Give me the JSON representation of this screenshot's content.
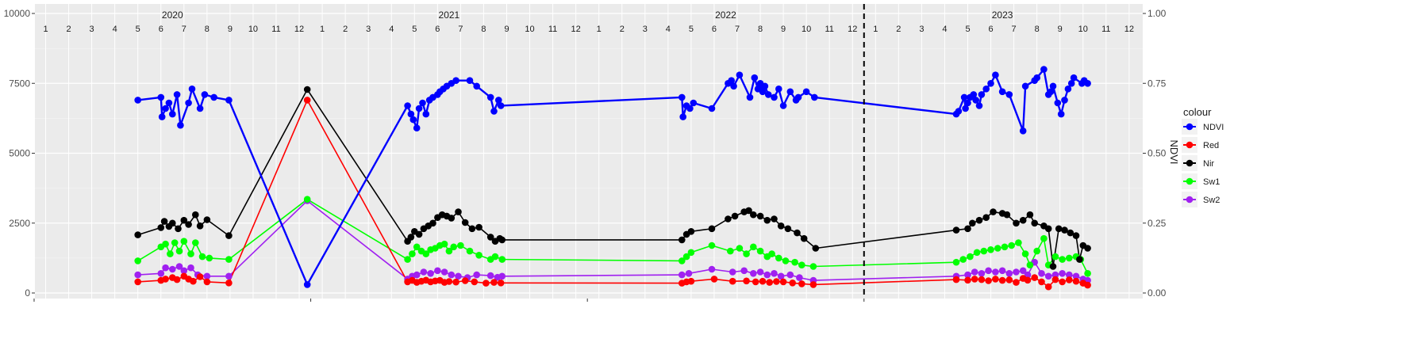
{
  "chart_data": {
    "type": "line",
    "ylim": [
      0,
      10000
    ],
    "y2lim": [
      0,
      1
    ],
    "y_ticks": [
      0,
      2500,
      5000,
      7500,
      10000
    ],
    "y_tick_labels": [
      "0",
      "2500",
      "5000",
      "7500",
      "10000"
    ],
    "y2_ticks": [
      0,
      0.25,
      0.5,
      0.75,
      1
    ],
    "y2_tick_labels": [
      "0.00",
      "0.25",
      "0.50",
      "0.75",
      "1.00"
    ],
    "y2label": "NDVI",
    "legend_title": "colour",
    "legend_position": "right",
    "grid": true,
    "years": [
      {
        "label": "2020",
        "month": 6.5
      },
      {
        "label": "2021",
        "month": 18.5
      },
      {
        "label": "2022",
        "month": 30.5
      },
      {
        "label": "2023",
        "month": 42.5
      }
    ],
    "month_labels": [
      "1",
      "2",
      "3",
      "4",
      "5",
      "6",
      "7",
      "8",
      "9",
      "10",
      "11",
      "12",
      "1",
      "2",
      "3",
      "4",
      "5",
      "6",
      "7",
      "8",
      "9",
      "10",
      "11",
      "12",
      "1",
      "2",
      "3",
      "4",
      "5",
      "6",
      "7",
      "8",
      "9",
      "10",
      "11",
      "12",
      "1",
      "2",
      "3",
      "4",
      "5",
      "6",
      "7",
      "8",
      "9",
      "10",
      "11",
      "12"
    ],
    "dashed_vline_month": 37,
    "series": [
      {
        "name": "NDVI",
        "color": "#0000ff",
        "axis": "right",
        "x": [
          5.0,
          6.0,
          6.05,
          6.2,
          6.35,
          6.5,
          6.7,
          6.85,
          7.2,
          7.35,
          7.7,
          7.9,
          8.3,
          8.95,
          12.35,
          16.7,
          16.85,
          16.95,
          17.1,
          17.2,
          17.35,
          17.5,
          17.65,
          17.8,
          18.0,
          18.1,
          18.25,
          18.4,
          18.6,
          18.8,
          19.4,
          19.7,
          20.3,
          20.45,
          20.65,
          20.75,
          28.6,
          28.65,
          28.8,
          28.95,
          29.1,
          29.9,
          30.6,
          30.75,
          30.85,
          31.1,
          31.55,
          31.75,
          31.9,
          32.0,
          32.1,
          32.2,
          32.35,
          32.6,
          32.8,
          33.0,
          33.3,
          33.55,
          33.65,
          34.0,
          34.35,
          40.5,
          40.6,
          40.85,
          40.9,
          41.0,
          41.1,
          41.25,
          41.35,
          41.5,
          41.6,
          41.8,
          42.0,
          42.2,
          42.5,
          42.8,
          43.4,
          43.5,
          43.9,
          44.0,
          44.3,
          44.5,
          44.6,
          44.7,
          44.9,
          45.05,
          45.2,
          45.35,
          45.5,
          45.6,
          45.95,
          46.05,
          46.2
        ],
        "y": [
          0.69,
          0.7,
          0.63,
          0.66,
          0.68,
          0.64,
          0.71,
          0.6,
          0.68,
          0.73,
          0.66,
          0.71,
          0.7,
          0.69,
          0.03,
          0.67,
          0.64,
          0.62,
          0.59,
          0.66,
          0.68,
          0.64,
          0.69,
          0.7,
          0.71,
          0.72,
          0.73,
          0.74,
          0.75,
          0.76,
          0.76,
          0.74,
          0.7,
          0.65,
          0.69,
          0.67,
          0.7,
          0.63,
          0.67,
          0.66,
          0.68,
          0.66,
          0.75,
          0.76,
          0.74,
          0.78,
          0.7,
          0.77,
          0.73,
          0.75,
          0.72,
          0.74,
          0.71,
          0.7,
          0.73,
          0.67,
          0.72,
          0.69,
          0.7,
          0.72,
          0.7,
          0.64,
          0.65,
          0.7,
          0.66,
          0.68,
          0.7,
          0.71,
          0.69,
          0.67,
          0.71,
          0.73,
          0.75,
          0.78,
          0.72,
          0.71,
          0.58,
          0.74,
          0.76,
          0.77,
          0.8,
          0.71,
          0.72,
          0.74,
          0.68,
          0.64,
          0.69,
          0.73,
          0.75,
          0.77,
          0.75,
          0.76,
          0.75
        ]
      },
      {
        "name": "Red",
        "color": "#ff0000",
        "axis": "left",
        "x": [
          5.0,
          6.0,
          6.2,
          6.5,
          6.7,
          7.0,
          7.2,
          7.4,
          7.7,
          8.0,
          8.95,
          12.35,
          16.7,
          16.9,
          17.1,
          17.3,
          17.5,
          17.7,
          17.9,
          18.1,
          18.3,
          18.5,
          18.8,
          19.2,
          19.6,
          20.1,
          20.45,
          20.75,
          28.6,
          28.8,
          29.0,
          30.0,
          30.8,
          31.4,
          31.8,
          32.1,
          32.4,
          32.7,
          33.0,
          33.4,
          33.8,
          34.3,
          40.5,
          41.0,
          41.3,
          41.6,
          41.9,
          42.2,
          42.5,
          42.8,
          43.1,
          43.4,
          43.6,
          43.9,
          44.2,
          44.5,
          44.8,
          45.1,
          45.4,
          45.7,
          46.0,
          46.2
        ],
        "y": [
          400,
          450,
          500,
          550,
          480,
          600,
          500,
          420,
          580,
          400,
          360,
          6900,
          400,
          450,
          380,
          420,
          460,
          400,
          430,
          450,
          380,
          410,
          390,
          440,
          400,
          350,
          380,
          360,
          350,
          400,
          420,
          500,
          420,
          430,
          400,
          420,
          380,
          410,
          400,
          360,
          330,
          300,
          480,
          460,
          500,
          480,
          440,
          500,
          450,
          470,
          380,
          520,
          460,
          550,
          400,
          220,
          480,
          400,
          470,
          420,
          350,
          280
        ]
      },
      {
        "name": "Nir",
        "color": "#000000",
        "axis": "left",
        "x": [
          5.0,
          6.0,
          6.15,
          6.35,
          6.5,
          6.75,
          7.0,
          7.2,
          7.5,
          7.7,
          8.0,
          8.95,
          12.35,
          16.7,
          16.85,
          17.0,
          17.2,
          17.4,
          17.6,
          17.8,
          18.0,
          18.2,
          18.4,
          18.6,
          18.9,
          19.2,
          19.5,
          19.8,
          20.3,
          20.5,
          20.7,
          20.8,
          28.6,
          28.8,
          29.0,
          29.9,
          30.6,
          30.9,
          31.3,
          31.5,
          31.7,
          32.0,
          32.3,
          32.6,
          32.9,
          33.2,
          33.6,
          33.9,
          34.4,
          40.5,
          41.0,
          41.2,
          41.5,
          41.8,
          42.1,
          42.5,
          42.7,
          43.1,
          43.4,
          43.7,
          43.9,
          44.3,
          44.5,
          44.7,
          44.95,
          45.2,
          45.45,
          45.7,
          45.85,
          46.0,
          46.2
        ],
        "y": [
          2080,
          2340,
          2560,
          2380,
          2500,
          2300,
          2600,
          2450,
          2800,
          2400,
          2620,
          2050,
          7280,
          1850,
          2000,
          2200,
          2100,
          2300,
          2400,
          2500,
          2700,
          2800,
          2750,
          2680,
          2900,
          2520,
          2300,
          2350,
          2000,
          1850,
          1950,
          1900,
          1900,
          2100,
          2200,
          2300,
          2650,
          2750,
          2900,
          2950,
          2800,
          2750,
          2600,
          2650,
          2400,
          2300,
          2150,
          1950,
          1600,
          2250,
          2300,
          2500,
          2600,
          2700,
          2900,
          2850,
          2800,
          2500,
          2600,
          2800,
          2500,
          2400,
          2300,
          950,
          2300,
          2250,
          2150,
          2050,
          1200,
          1700,
          1600
        ]
      },
      {
        "name": "Sw1",
        "color": "#00ff00",
        "axis": "left",
        "x": [
          5.0,
          6.0,
          6.2,
          6.4,
          6.6,
          6.8,
          7.0,
          7.3,
          7.5,
          7.8,
          8.1,
          8.95,
          12.35,
          16.7,
          16.9,
          17.1,
          17.3,
          17.5,
          17.7,
          17.9,
          18.1,
          18.3,
          18.5,
          18.7,
          19.0,
          19.4,
          19.8,
          20.3,
          20.5,
          20.8,
          28.6,
          28.8,
          29.0,
          29.9,
          30.7,
          31.1,
          31.4,
          31.7,
          32.0,
          32.3,
          32.5,
          32.8,
          33.1,
          33.5,
          33.8,
          34.3,
          40.5,
          40.8,
          41.1,
          41.4,
          41.7,
          42.0,
          42.3,
          42.6,
          42.9,
          43.2,
          43.5,
          43.7,
          44.0,
          44.3,
          44.5,
          44.8,
          45.1,
          45.4,
          45.7,
          45.9,
          46.2
        ],
        "y": [
          1150,
          1650,
          1750,
          1400,
          1800,
          1500,
          1850,
          1400,
          1800,
          1300,
          1250,
          1200,
          3350,
          1200,
          1400,
          1650,
          1500,
          1400,
          1550,
          1600,
          1700,
          1750,
          1500,
          1650,
          1700,
          1500,
          1350,
          1200,
          1300,
          1200,
          1150,
          1300,
          1450,
          1700,
          1500,
          1600,
          1400,
          1650,
          1500,
          1300,
          1400,
          1250,
          1150,
          1100,
          1000,
          950,
          1100,
          1200,
          1300,
          1450,
          1500,
          1550,
          1600,
          1650,
          1700,
          1800,
          1400,
          1000,
          1500,
          1950,
          1000,
          1300,
          1200,
          1250,
          1300,
          1200,
          700
        ]
      },
      {
        "name": "Sw2",
        "color": "#a020f0",
        "axis": "left",
        "x": [
          5.0,
          6.0,
          6.2,
          6.5,
          6.8,
          7.0,
          7.3,
          7.6,
          8.0,
          8.95,
          12.35,
          16.7,
          16.9,
          17.1,
          17.4,
          17.7,
          18.0,
          18.3,
          18.6,
          18.9,
          19.3,
          19.7,
          20.3,
          20.6,
          20.8,
          28.6,
          28.9,
          29.9,
          30.8,
          31.3,
          31.7,
          32.0,
          32.3,
          32.6,
          32.9,
          33.3,
          33.7,
          34.3,
          40.5,
          41.0,
          41.3,
          41.6,
          41.9,
          42.2,
          42.5,
          42.8,
          43.1,
          43.4,
          43.6,
          43.9,
          44.2,
          44.5,
          44.8,
          45.1,
          45.4,
          45.7,
          46.0,
          46.2
        ],
        "y": [
          650,
          700,
          900,
          850,
          950,
          800,
          900,
          650,
          600,
          600,
          3300,
          500,
          600,
          650,
          750,
          700,
          800,
          750,
          650,
          600,
          550,
          650,
          620,
          560,
          600,
          650,
          700,
          850,
          750,
          800,
          700,
          750,
          650,
          700,
          600,
          650,
          550,
          450,
          600,
          650,
          750,
          700,
          800,
          750,
          800,
          700,
          750,
          800,
          650,
          1100,
          700,
          600,
          650,
          700,
          650,
          600,
          500,
          450
        ]
      }
    ]
  }
}
